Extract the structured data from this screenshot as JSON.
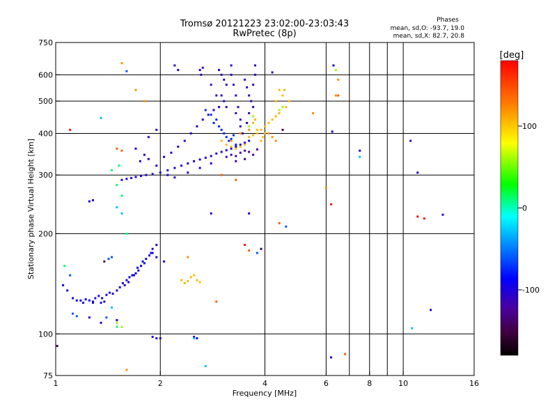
{
  "title_line1": "Tromsø 20121223 23:02:00-23:03:43",
  "title_line2": "RwPretec (8p)",
  "phases": {
    "heading": "Phases",
    "line_o": "mean, sd,O: -93.7, 19.0",
    "line_x": "mean, sd,X:  82.7, 20.8"
  },
  "colorbar": {
    "unit_label": "[deg]",
    "range": [
      -180,
      180
    ],
    "ticks": [
      {
        "value": 100,
        "label": "100"
      },
      {
        "value": 0,
        "label": "0"
      },
      {
        "value": -100,
        "label": "-100"
      }
    ],
    "stops": [
      {
        "v": 0.0,
        "color": "#000000"
      },
      {
        "v": 0.08,
        "color": "#400040"
      },
      {
        "v": 0.16,
        "color": "#4a00a0"
      },
      {
        "v": 0.26,
        "color": "#0000ff"
      },
      {
        "v": 0.38,
        "color": "#0090ff"
      },
      {
        "v": 0.47,
        "color": "#00ffff"
      },
      {
        "v": 0.58,
        "color": "#00ff00"
      },
      {
        "v": 0.72,
        "color": "#ffff00"
      },
      {
        "v": 0.85,
        "color": "#ff8000"
      },
      {
        "v": 1.0,
        "color": "#ff0000"
      }
    ]
  },
  "chart_data": {
    "type": "scatter",
    "xlabel": "Frequency [MHz]",
    "ylabel": "Stationary phase Virtual Height [km]",
    "x_scale": "log",
    "y_scale": "log",
    "xlim": [
      1,
      16
    ],
    "ylim": [
      75,
      750
    ],
    "x_ticks": [
      1,
      2,
      4,
      6,
      8,
      10,
      16
    ],
    "y_ticks": [
      75,
      100,
      200,
      300,
      400,
      500,
      600,
      750
    ],
    "x_grid": [
      2,
      4,
      6,
      7,
      8,
      9,
      10
    ],
    "y_grid": [
      100,
      200,
      300,
      400,
      500,
      600
    ],
    "series": [
      {
        "phase": -95,
        "points": [
          [
            1.05,
            140
          ],
          [
            1.08,
            135
          ],
          [
            1.12,
            128
          ],
          [
            1.15,
            126
          ],
          [
            1.18,
            126
          ],
          [
            1.22,
            127
          ],
          [
            1.25,
            126
          ],
          [
            1.28,
            125
          ],
          [
            1.3,
            128
          ],
          [
            1.33,
            130
          ],
          [
            1.36,
            128
          ],
          [
            1.4,
            131
          ],
          [
            1.43,
            133
          ],
          [
            1.46,
            132
          ],
          [
            1.5,
            135
          ],
          [
            1.53,
            138
          ],
          [
            1.56,
            142
          ],
          [
            1.6,
            145
          ],
          [
            1.63,
            148
          ],
          [
            1.66,
            150
          ],
          [
            1.7,
            152
          ],
          [
            1.73,
            155
          ],
          [
            1.76,
            160
          ],
          [
            1.8,
            163
          ],
          [
            1.82,
            168
          ],
          [
            1.86,
            172
          ],
          [
            1.9,
            175
          ],
          [
            1.95,
            170
          ],
          [
            1.38,
            125
          ],
          [
            1.35,
            124
          ],
          [
            1.28,
            124
          ],
          [
            1.2,
            124
          ],
          [
            1.58,
            140
          ],
          [
            1.62,
            143
          ],
          [
            1.68,
            150
          ],
          [
            1.72,
            158
          ],
          [
            1.78,
            165
          ]
        ]
      },
      {
        "phase": -100,
        "points": [
          [
            1.25,
            250
          ],
          [
            1.28,
            252
          ],
          [
            1.55,
            290
          ],
          [
            1.6,
            292
          ],
          [
            1.65,
            294
          ],
          [
            1.7,
            296
          ],
          [
            1.76,
            298
          ],
          [
            1.82,
            300
          ],
          [
            1.9,
            302
          ],
          [
            2.0,
            305
          ],
          [
            2.1,
            310
          ],
          [
            2.2,
            315
          ],
          [
            2.3,
            320
          ],
          [
            2.4,
            325
          ],
          [
            2.5,
            330
          ],
          [
            2.6,
            334
          ],
          [
            2.7,
            338
          ],
          [
            2.8,
            342
          ],
          [
            2.9,
            348
          ],
          [
            3.0,
            352
          ],
          [
            3.1,
            356
          ],
          [
            3.2,
            360
          ],
          [
            3.3,
            365
          ],
          [
            3.4,
            370
          ],
          [
            3.5,
            375
          ],
          [
            3.6,
            380
          ],
          [
            1.75,
            330
          ],
          [
            1.8,
            345
          ],
          [
            1.85,
            335
          ],
          [
            1.95,
            320
          ],
          [
            2.05,
            340
          ],
          [
            2.15,
            350
          ],
          [
            2.25,
            365
          ],
          [
            2.35,
            380
          ],
          [
            2.45,
            400
          ],
          [
            2.55,
            420
          ],
          [
            2.65,
            440
          ],
          [
            2.75,
            455
          ],
          [
            2.85,
            470
          ],
          [
            2.95,
            480
          ],
          [
            1.7,
            360
          ],
          [
            1.85,
            390
          ],
          [
            1.95,
            410
          ],
          [
            2.1,
            300
          ],
          [
            2.2,
            295
          ],
          [
            2.4,
            305
          ],
          [
            2.6,
            315
          ],
          [
            2.8,
            325
          ]
        ]
      },
      {
        "phase": -110,
        "points": [
          [
            2.95,
            620
          ],
          [
            3.0,
            600
          ],
          [
            3.05,
            580
          ],
          [
            3.1,
            560
          ],
          [
            3.0,
            520
          ],
          [
            3.05,
            500
          ],
          [
            3.1,
            480
          ],
          [
            3.2,
            600
          ],
          [
            3.25,
            560
          ],
          [
            3.3,
            520
          ],
          [
            3.35,
            480
          ],
          [
            3.4,
            440
          ],
          [
            3.5,
            580
          ],
          [
            3.55,
            550
          ],
          [
            3.6,
            520
          ],
          [
            3.65,
            500
          ],
          [
            3.7,
            560
          ],
          [
            3.75,
            600
          ],
          [
            3.3,
            460
          ],
          [
            3.4,
            420
          ],
          [
            3.45,
            400
          ],
          [
            3.55,
            430
          ],
          [
            3.6,
            460
          ],
          [
            3.7,
            480
          ],
          [
            2.6,
            620
          ],
          [
            2.62,
            600
          ],
          [
            2.65,
            630
          ],
          [
            2.2,
            640
          ],
          [
            2.25,
            620
          ],
          [
            3.75,
            640
          ],
          [
            4.2,
            610
          ],
          [
            3.2,
            640
          ],
          [
            2.8,
            560
          ],
          [
            2.9,
            520
          ]
        ]
      },
      {
        "phase": -120,
        "points": [
          [
            3.1,
            340
          ],
          [
            3.2,
            345
          ],
          [
            3.3,
            342
          ],
          [
            3.4,
            350
          ],
          [
            3.5,
            355
          ],
          [
            3.6,
            352
          ],
          [
            3.7,
            345
          ],
          [
            3.8,
            358
          ],
          [
            3.3,
            330
          ],
          [
            3.5,
            335
          ]
        ]
      },
      {
        "phase": -100,
        "points": [
          [
            1.9,
            98
          ],
          [
            1.95,
            97
          ],
          [
            2.0,
            97
          ],
          [
            2.5,
            98
          ],
          [
            2.55,
            97
          ],
          [
            6.2,
            85
          ],
          [
            6.3,
            640
          ],
          [
            6.25,
            405
          ],
          [
            7.5,
            355
          ],
          [
            10.5,
            380
          ],
          [
            11.0,
            305
          ],
          [
            12.0,
            118
          ],
          [
            13.0,
            228
          ],
          [
            1.25,
            112
          ],
          [
            1.5,
            110
          ],
          [
            1.35,
            108
          ],
          [
            2.8,
            230
          ],
          [
            3.6,
            230
          ],
          [
            1.9,
            180
          ],
          [
            1.88,
            175
          ],
          [
            1.95,
            185
          ],
          [
            2.05,
            165
          ]
        ]
      },
      {
        "phase": -75,
        "points": [
          [
            2.9,
            440
          ],
          [
            2.95,
            420
          ],
          [
            3.0,
            410
          ],
          [
            3.05,
            400
          ],
          [
            3.1,
            390
          ],
          [
            3.15,
            380
          ],
          [
            3.2,
            385
          ],
          [
            3.25,
            395
          ],
          [
            2.8,
            455
          ],
          [
            2.85,
            430
          ],
          [
            3.3,
            370
          ],
          [
            2.7,
            470
          ]
        ]
      },
      {
        "phase": 105,
        "points": [
          [
            3.0,
            380
          ],
          [
            3.1,
            370
          ],
          [
            3.2,
            365
          ],
          [
            3.3,
            360
          ],
          [
            3.4,
            365
          ],
          [
            3.5,
            370
          ],
          [
            3.6,
            390
          ],
          [
            3.7,
            395
          ],
          [
            3.8,
            400
          ],
          [
            3.9,
            410
          ],
          [
            4.0,
            420
          ],
          [
            4.1,
            430
          ],
          [
            4.2,
            440
          ],
          [
            4.3,
            450
          ],
          [
            4.4,
            460
          ],
          [
            4.5,
            520
          ],
          [
            4.55,
            540
          ],
          [
            4.6,
            480
          ],
          [
            4.7,
            500
          ],
          [
            4.4,
            540
          ],
          [
            4.3,
            500
          ],
          [
            3.9,
            380
          ],
          [
            3.95,
            390
          ],
          [
            4.0,
            400
          ],
          [
            2.3,
            145
          ],
          [
            2.35,
            142
          ],
          [
            2.4,
            144
          ],
          [
            2.45,
            148
          ],
          [
            2.5,
            150
          ],
          [
            2.55,
            145
          ],
          [
            2.6,
            143
          ],
          [
            3.7,
            430
          ],
          [
            3.75,
            440
          ],
          [
            3.8,
            410
          ]
        ]
      },
      {
        "phase": 120,
        "points": [
          [
            3.2,
            380
          ],
          [
            3.4,
            400
          ],
          [
            3.6,
            410
          ],
          [
            4.1,
            400
          ],
          [
            4.2,
            390
          ],
          [
            4.3,
            380
          ],
          [
            5.5,
            460
          ],
          [
            6.0,
            275
          ],
          [
            6.5,
            580
          ],
          [
            6.4,
            520
          ],
          [
            2.4,
            170
          ],
          [
            1.6,
            78
          ],
          [
            1.55,
            650
          ],
          [
            1.7,
            540
          ],
          [
            1.8,
            500
          ]
        ]
      },
      {
        "phase": 60,
        "points": [
          [
            3.6,
            420
          ],
          [
            3.7,
            450
          ],
          [
            4.4,
            470
          ],
          [
            4.5,
            480
          ],
          [
            1.5,
            108
          ],
          [
            1.55,
            105
          ],
          [
            6.4,
            620
          ]
        ]
      },
      {
        "phase": 10,
        "points": [
          [
            1.5,
            105
          ],
          [
            1.06,
            160
          ],
          [
            1.6,
            200
          ],
          [
            1.5,
            280
          ],
          [
            1.55,
            260
          ],
          [
            1.45,
            310
          ],
          [
            1.52,
            320
          ]
        ]
      },
      {
        "phase": -30,
        "points": [
          [
            1.35,
            445
          ],
          [
            1.5,
            240
          ],
          [
            1.55,
            230
          ],
          [
            1.45,
            120
          ],
          [
            2.7,
            80
          ],
          [
            2.5,
            97
          ],
          [
            7.5,
            340
          ],
          [
            10.6,
            104
          ]
        ]
      },
      {
        "phase": -60,
        "points": [
          [
            1.1,
            150
          ],
          [
            1.12,
            115
          ],
          [
            1.15,
            113
          ],
          [
            1.4,
            112
          ],
          [
            1.42,
            168
          ],
          [
            1.45,
            170
          ],
          [
            1.6,
            615
          ],
          [
            3.8,
            175
          ],
          [
            4.6,
            210
          ]
        ]
      },
      {
        "phase": 140,
        "points": [
          [
            1.5,
            360
          ],
          [
            1.55,
            355
          ],
          [
            4.4,
            215
          ],
          [
            3.6,
            178
          ],
          [
            6.5,
            520
          ],
          [
            6.8,
            87
          ],
          [
            3.0,
            300
          ],
          [
            3.3,
            290
          ],
          [
            2.9,
            125
          ]
        ]
      },
      {
        "phase": 175,
        "points": [
          [
            1.1,
            410
          ],
          [
            6.2,
            245
          ],
          [
            11.0,
            225
          ],
          [
            11.5,
            222
          ],
          [
            3.5,
            185
          ]
        ]
      },
      {
        "phase": -150,
        "points": [
          [
            1.38,
            165
          ],
          [
            3.9,
            180
          ],
          [
            4.5,
            410
          ],
          [
            1.01,
            92
          ]
        ]
      }
    ]
  }
}
